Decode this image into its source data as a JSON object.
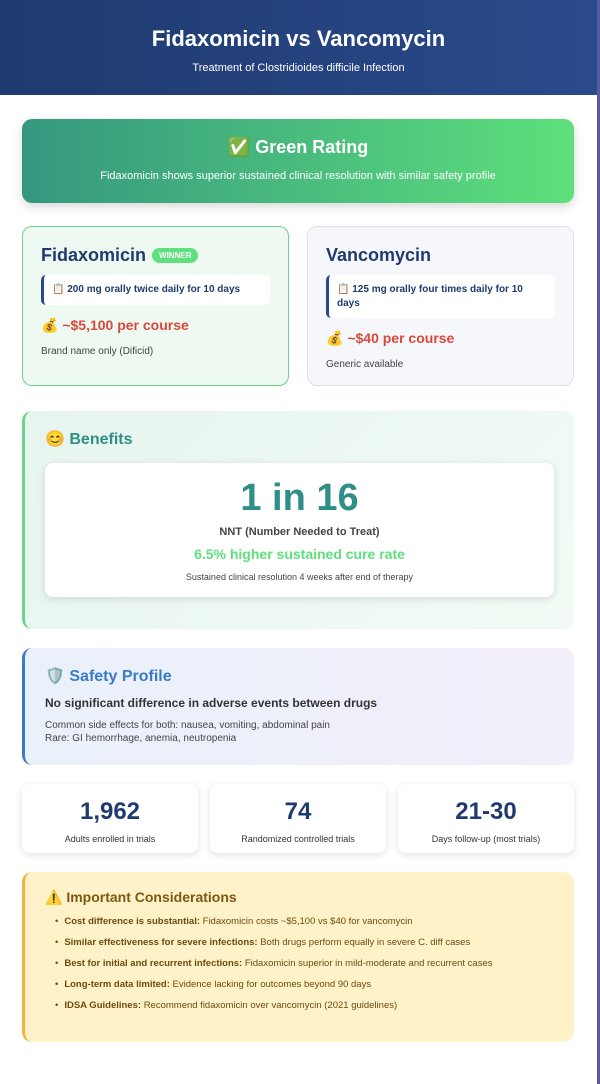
{
  "header": {
    "title": "Fidaxomicin vs Vancomycin",
    "subtitle": "Treatment of Clostridioides difficile Infection"
  },
  "rating": {
    "icon": "✅",
    "title": "Green Rating",
    "text": "Fidaxomicin shows superior sustained clinical resolution with similar safety profile"
  },
  "drugs": [
    {
      "name": "Fidaxomicin",
      "badge": "WINNER",
      "dosing_icon": "📋",
      "dosing": "200 mg orally twice daily for 10 days",
      "cost_icon": "💰",
      "cost": "~$5,100 per course",
      "note": "Brand name only (Dificid)"
    },
    {
      "name": "Vancomycin",
      "dosing_icon": "📋",
      "dosing": "125 mg orally four times daily for 10 days",
      "cost_icon": "💰",
      "cost": "~$40 per course",
      "note": "Generic available"
    }
  ],
  "benefits": {
    "icon": "😊",
    "title": "Benefits",
    "nnt": "1 in 16",
    "nnt_label": "NNT (Number Needed to Treat)",
    "highlight": "6.5% higher sustained cure rate",
    "note": "Sustained clinical resolution 4 weeks after end of therapy"
  },
  "safety": {
    "icon": "🛡️",
    "title": "Safety Profile",
    "summary": "No significant difference in adverse events between drugs",
    "lines": [
      "Common side effects for both: nausea, vomiting, abdominal pain",
      "Rare: GI hemorrhage, anemia, neutropenia"
    ]
  },
  "stats": [
    {
      "value": "1,962",
      "label": "Adults enrolled in trials"
    },
    {
      "value": "74",
      "label": "Randomized controlled trials"
    },
    {
      "value": "21-30",
      "label": "Days follow-up (most trials)"
    }
  ],
  "considerations": {
    "icon": "⚠️",
    "title": "Important Considerations",
    "items": [
      {
        "label": "Cost difference is substantial:",
        "text": "Fidaxomicin costs ~$5,100 vs $40 for vancomycin"
      },
      {
        "label": "Similar effectiveness for severe infections:",
        "text": "Both drugs perform equally in severe C. diff cases"
      },
      {
        "label": "Best for initial and recurrent infections:",
        "text": "Fidaxomicin superior in mild-moderate and recurrent cases"
      },
      {
        "label": "Long-term data limited:",
        "text": "Evidence lacking for outcomes beyond 90 days"
      },
      {
        "label": "IDSA Guidelines:",
        "text": "Recommend fidaxomicin over vancomycin (2021 guidelines)"
      }
    ]
  }
}
